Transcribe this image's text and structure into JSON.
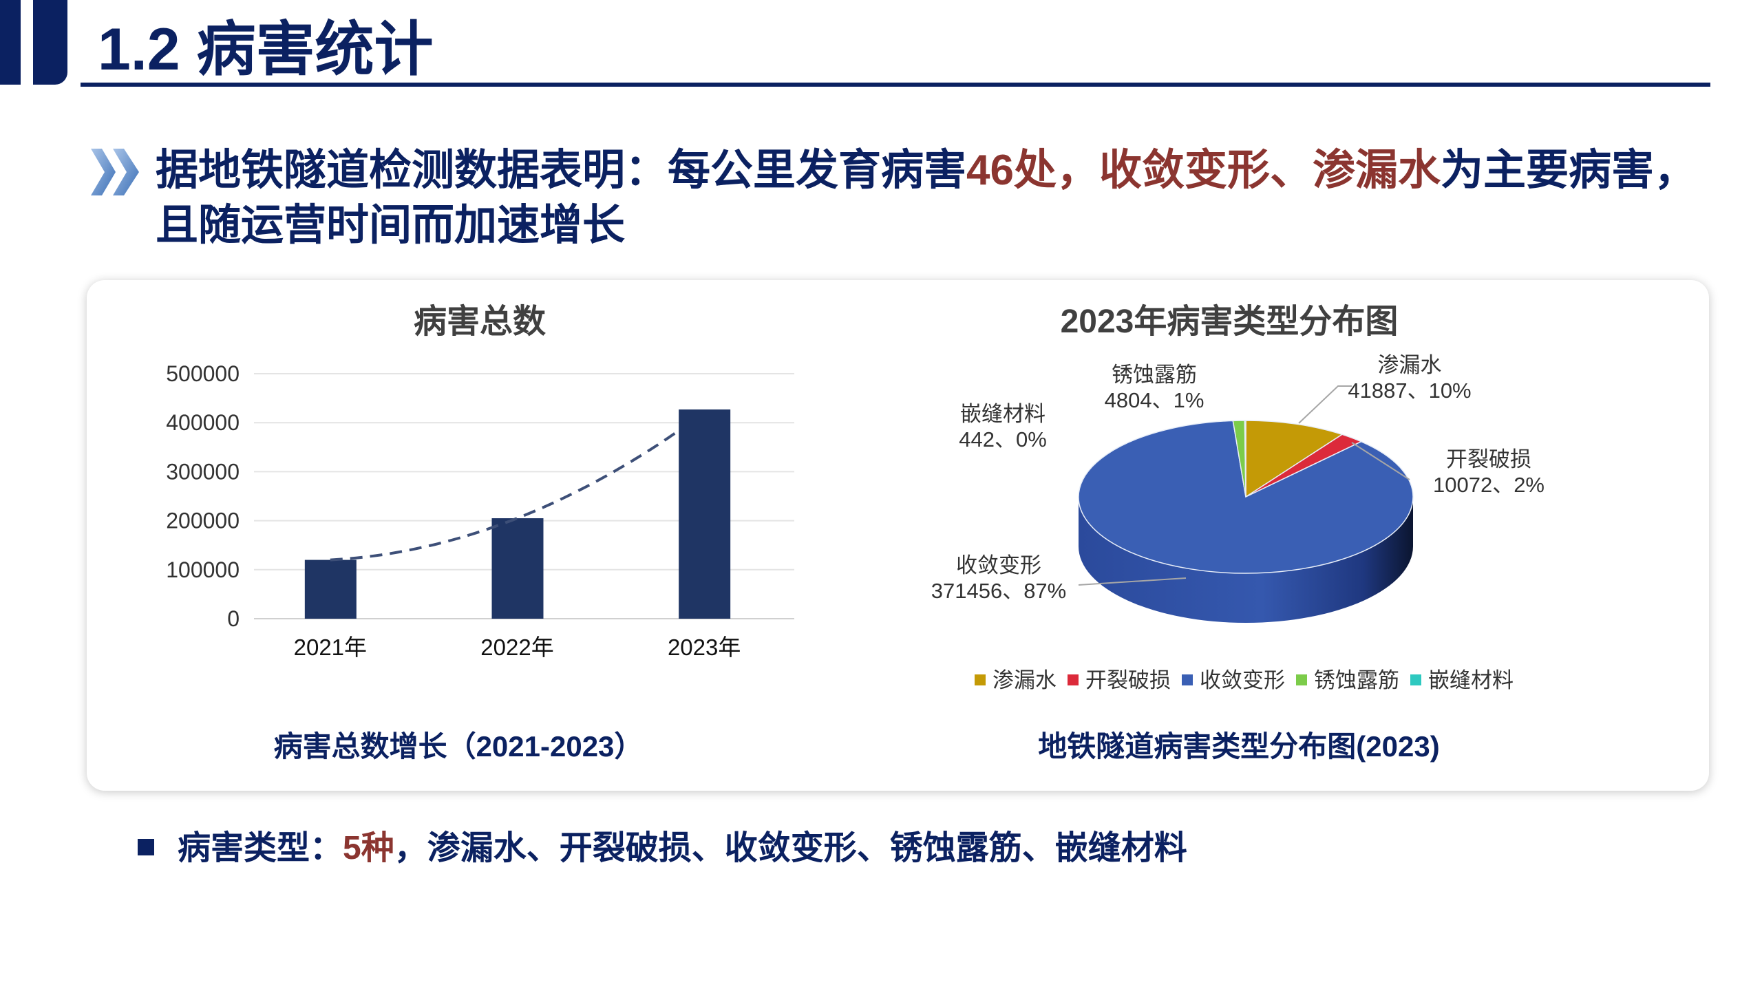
{
  "header": {
    "title": "1.2 病害统计"
  },
  "lead": {
    "part1": "据地铁隧道检测数据表明：每公里发育病害",
    "highlight1": "46处，收敛变形、渗漏水",
    "part2": "为主要病害，且随运营时间而加速增长"
  },
  "footer": {
    "label": "病害类型：",
    "highlight": "5种",
    "rest": "，渗漏水、开裂破损、收敛变形、锈蚀露筋、嵌缝材料"
  },
  "colors": {
    "navy": "#0b2161",
    "highlight_red": "#8b3530",
    "bar": "#1f3564"
  },
  "chart_data": [
    {
      "type": "bar",
      "title": "病害总数",
      "caption": "病害总数增长（2021-2023）",
      "categories": [
        "2021年",
        "2022年",
        "2023年"
      ],
      "values": [
        120000,
        205000,
        427000
      ],
      "ylim": [
        0,
        500000
      ],
      "yticks": [
        "0",
        "100000",
        "200000",
        "300000",
        "400000",
        "500000"
      ],
      "grid": true,
      "xlabel": "",
      "ylabel": ""
    },
    {
      "type": "pie",
      "title": "2023年病害类型分布图",
      "caption": "地铁隧道病害类型分布图(2023)",
      "legend_position": "bottom",
      "slices": [
        {
          "name": "渗漏水",
          "value": 41887,
          "label": "41887、10%",
          "color": "#c49a06"
        },
        {
          "name": "开裂破损",
          "value": 10072,
          "label": "10072、2%",
          "color": "#dc2a3a"
        },
        {
          "name": "收敛变形",
          "value": 371456,
          "label": "371456、87%",
          "color": "#3a5fb4"
        },
        {
          "name": "锈蚀露筋",
          "value": 4804,
          "label": "4804、1%",
          "color": "#7ccc4a"
        },
        {
          "name": "嵌缝材料",
          "value": 442,
          "label": "442、0%",
          "color": "#2ec9c0"
        }
      ]
    }
  ]
}
